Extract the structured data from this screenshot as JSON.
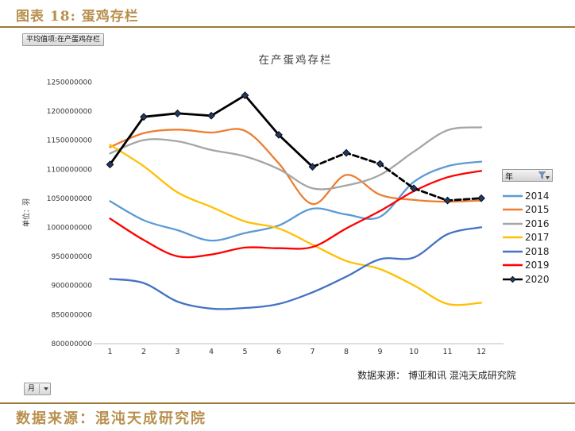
{
  "page": {
    "header_title": "图表 18: 蛋鸡存栏",
    "footer_source": "数据来源：混沌天成研究院",
    "accent_color": "#b8904e"
  },
  "pivot_controls": {
    "value_field_label": "平均值项:在产蛋鸡存栏",
    "month_field_label": "月",
    "legend_field_label": "年"
  },
  "chart_data": {
    "type": "line",
    "title": "在产蛋鸡存栏",
    "ylabel": "单位：羽",
    "source_note": "数据来源： 博亚和讯 混沌天成研究院",
    "legend_title": "年",
    "legend_position": "right",
    "grid": false,
    "x": [
      1,
      2,
      3,
      4,
      5,
      6,
      7,
      8,
      9,
      10,
      11,
      12
    ],
    "ylim": [
      800000000,
      1250000000
    ],
    "ytick_step": 50000000,
    "series": [
      {
        "name": "2014",
        "color": "#5B9BD5",
        "smooth": true,
        "line_style": "solid",
        "marker": "none",
        "values": [
          1045000000,
          1012000000,
          995000000,
          977000000,
          990000000,
          1003000000,
          1032000000,
          1022000000,
          1018000000,
          1078000000,
          1105000000,
          1113000000
        ]
      },
      {
        "name": "2015",
        "color": "#ED7D31",
        "smooth": true,
        "line_style": "solid",
        "marker": "none",
        "values": [
          1138000000,
          1162000000,
          1168000000,
          1163000000,
          1166000000,
          1110000000,
          1040000000,
          1090000000,
          1056000000,
          1047000000,
          1044000000,
          1046000000
        ]
      },
      {
        "name": "2016",
        "color": "#A5A5A5",
        "smooth": true,
        "line_style": "solid",
        "marker": "none",
        "values": [
          1127000000,
          1150000000,
          1148000000,
          1133000000,
          1122000000,
          1100000000,
          1067000000,
          1072000000,
          1090000000,
          1130000000,
          1167000000,
          1172000000
        ]
      },
      {
        "name": "2017",
        "color": "#FFC000",
        "smooth": true,
        "line_style": "solid",
        "marker": "none",
        "values": [
          1142000000,
          1105000000,
          1060000000,
          1035000000,
          1010000000,
          998000000,
          970000000,
          942000000,
          928000000,
          900000000,
          868000000,
          870000000
        ]
      },
      {
        "name": "2018",
        "color": "#4472C4",
        "smooth": true,
        "line_style": "solid",
        "marker": "none",
        "values": [
          911000000,
          904000000,
          872000000,
          860000000,
          861000000,
          868000000,
          888000000,
          915000000,
          945000000,
          948000000,
          988000000,
          1000000000
        ]
      },
      {
        "name": "2019",
        "color": "#FF0000",
        "smooth": true,
        "line_style": "solid",
        "marker": "none",
        "values": [
          1015000000,
          978000000,
          950000000,
          953000000,
          965000000,
          964000000,
          966000000,
          998000000,
          1028000000,
          1062000000,
          1086000000,
          1097000000
        ]
      },
      {
        "name": "2020",
        "color": "#000000",
        "smooth": false,
        "line_style": "solid-then-dashed",
        "dash_from_index": 6,
        "marker": "diamond",
        "marker_color": "#1F3864",
        "width": 2.8,
        "values": [
          1108000000,
          1190000000,
          1196000000,
          1192000000,
          1227000000,
          1159000000,
          1104000000,
          1128000000,
          1109000000,
          1067000000,
          1046000000,
          1050000000
        ]
      }
    ]
  }
}
